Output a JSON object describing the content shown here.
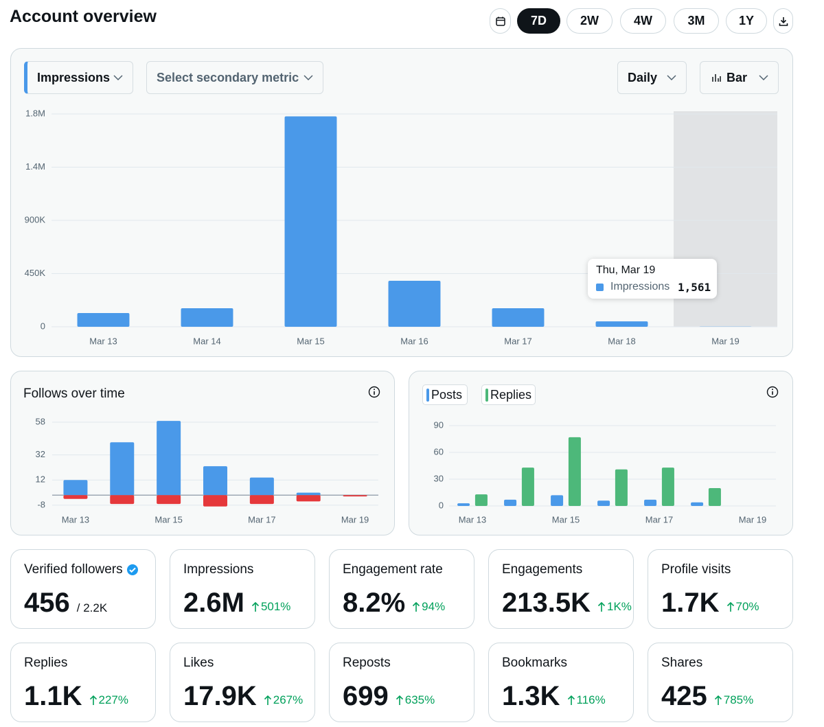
{
  "header": {
    "title": "Account overview"
  },
  "ranges": {
    "options": [
      "7D",
      "2W",
      "4W",
      "3M",
      "1Y"
    ],
    "selected": 0
  },
  "controls": {
    "metric": "Impressions",
    "secondary": "Select secondary metric",
    "interval": "Daily",
    "chart_type": "Bar"
  },
  "chart_data": [
    {
      "type": "bar",
      "categories": [
        "Mar 13",
        "Mar 14",
        "Mar 15",
        "Mar 16",
        "Mar 17",
        "Mar 18",
        "Mar 19"
      ],
      "values": [
        116000,
        157000,
        1780000,
        389000,
        157000,
        46000,
        1561
      ],
      "color": "#4a99e9",
      "ylim": [
        0,
        1800000
      ],
      "yticks": [
        0,
        {
          "value": 450000,
          "label": "450K"
        },
        {
          "value": 900000,
          "label": "900K"
        },
        {
          "value": 1350000,
          "label": "1.4M"
        },
        {
          "value": 1800000,
          "label": "1.8M"
        }
      ],
      "grid": true,
      "tooltip": {
        "title": "Thu, Mar 19",
        "value_label": "1,561"
      }
    },
    {
      "type": "bar",
      "title": "Follows over time",
      "stacked": true,
      "categories": [
        "Mar 13",
        null,
        "Mar 15",
        null,
        "Mar 17",
        null,
        "Mar 19"
      ],
      "series": [
        {
          "color": "#4a99e9",
          "values": [
            12,
            42,
            59,
            23,
            14,
            2,
            0
          ]
        },
        {
          "color": "#e5383b",
          "values": [
            -3,
            -7,
            -7,
            -9,
            -7,
            -5,
            -1
          ]
        }
      ],
      "ylim": [
        -10,
        60
      ],
      "yticks": [
        -8,
        12,
        32,
        58
      ],
      "grid": true
    },
    {
      "type": "bar",
      "categories": [
        "Mar 13",
        null,
        "Mar 15",
        null,
        "Mar 17",
        null,
        "Mar 19"
      ],
      "series": [
        {
          "name": "Posts",
          "color": "#4a99e9",
          "values": [
            3,
            7,
            12,
            6,
            7,
            4,
            0
          ]
        },
        {
          "name": "Replies",
          "color": "#4db87a",
          "values": [
            13,
            43,
            77,
            41,
            43,
            20,
            0
          ]
        }
      ],
      "ylim": [
        0,
        90
      ],
      "yticks": [
        0,
        30,
        60,
        90
      ],
      "grid": true
    }
  ],
  "cards": [
    {
      "label": "Verified followers",
      "value": "456",
      "total": "/ 2.2K",
      "verified": true
    },
    {
      "label": "Impressions",
      "value": "2.6M",
      "change": "501%"
    },
    {
      "label": "Engagement rate",
      "value": "8.2%",
      "change": "94%"
    },
    {
      "label": "Engagements",
      "value": "213.5K",
      "change": "1K%"
    },
    {
      "label": "Profile visits",
      "value": "1.7K",
      "change": "70%"
    },
    {
      "label": "Replies",
      "value": "1.1K",
      "change": "227%"
    },
    {
      "label": "Likes",
      "value": "17.9K",
      "change": "267%"
    },
    {
      "label": "Reposts",
      "value": "699",
      "change": "635%"
    },
    {
      "label": "Bookmarks",
      "value": "1.3K",
      "change": "116%"
    },
    {
      "label": "Shares",
      "value": "425",
      "change": "785%"
    }
  ]
}
